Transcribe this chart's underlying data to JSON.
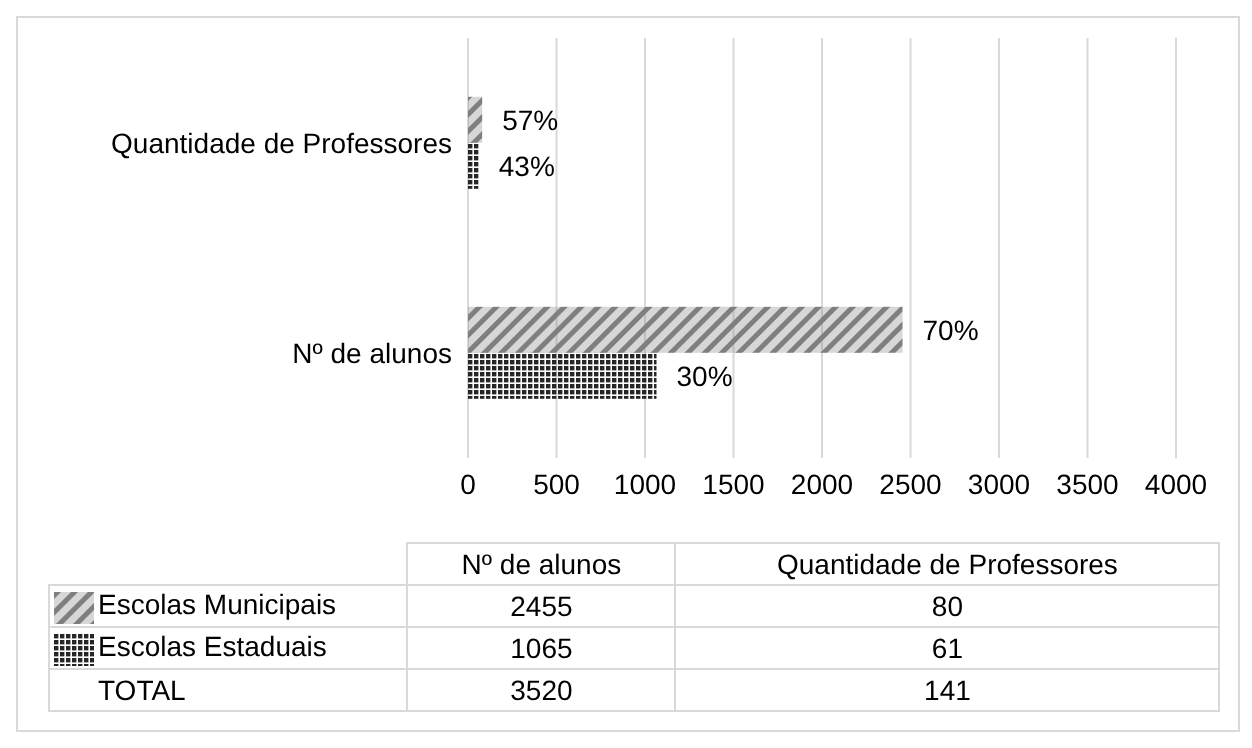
{
  "chart_data": {
    "type": "bar",
    "orientation": "horizontal",
    "categories": [
      "Quantidade de Professores",
      "Nº de alunos"
    ],
    "series": [
      {
        "name": "Escolas Municipais",
        "color": "#7f7f7f",
        "values": [
          80,
          2455
        ]
      },
      {
        "name": "Escolas Estaduais",
        "color": "#262626",
        "values": [
          61,
          1065
        ]
      }
    ],
    "xlim": [
      0,
      4000
    ],
    "xticks": [
      0,
      500,
      1000,
      1500,
      2000,
      2500,
      3000,
      3500,
      4000
    ],
    "grid": "x",
    "legend": "bottom",
    "annotations": [
      {
        "text": "57%",
        "x": 80,
        "y": "Quantidade de Professores"
      },
      {
        "text": "70%",
        "x": 2455,
        "y": "Nº de alunos"
      },
      {
        "text": "43%",
        "x": 61,
        "y": "Quantidade de Professores"
      },
      {
        "text": "30%",
        "x": 1065,
        "y": "Nº de alunos"
      },
      "2455",
      "80",
      "1065",
      "61",
      "TOTAL",
      "3520",
      "141"
    ]
  }
}
